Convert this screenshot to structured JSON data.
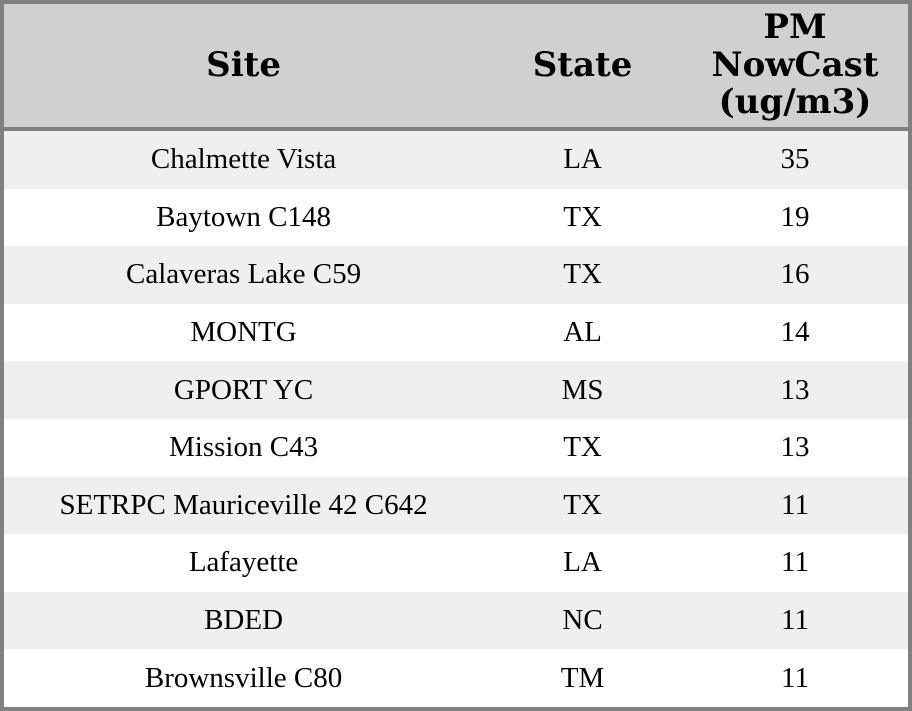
{
  "table": {
    "columns": [
      {
        "label": "Site"
      },
      {
        "label": "State"
      },
      {
        "label": "PM NowCast (ug/m3)"
      }
    ],
    "rows": [
      {
        "site": "Chalmette Vista",
        "state": "LA",
        "pm_nowcast": "35"
      },
      {
        "site": "Baytown C148",
        "state": "TX",
        "pm_nowcast": "19"
      },
      {
        "site": "Calaveras Lake C59",
        "state": "TX",
        "pm_nowcast": "16"
      },
      {
        "site": "MONTG",
        "state": "AL",
        "pm_nowcast": "14"
      },
      {
        "site": "GPORT YC",
        "state": "MS",
        "pm_nowcast": "13"
      },
      {
        "site": "Mission C43",
        "state": "TX",
        "pm_nowcast": "13"
      },
      {
        "site": "SETRPC Mauriceville 42 C642",
        "state": "TX",
        "pm_nowcast": "11"
      },
      {
        "site": "Lafayette",
        "state": "LA",
        "pm_nowcast": "11"
      },
      {
        "site": "BDED",
        "state": "NC",
        "pm_nowcast": "11"
      },
      {
        "site": "Brownsville C80",
        "state": "TM",
        "pm_nowcast": "11"
      }
    ]
  },
  "colors": {
    "header_bg": "#d0d0d0",
    "header_divider": "#7f7f7f",
    "outer_border": "#808080",
    "row_alt_bg": "#efefef",
    "row_bg": "#ffffff",
    "text": "#000000"
  }
}
